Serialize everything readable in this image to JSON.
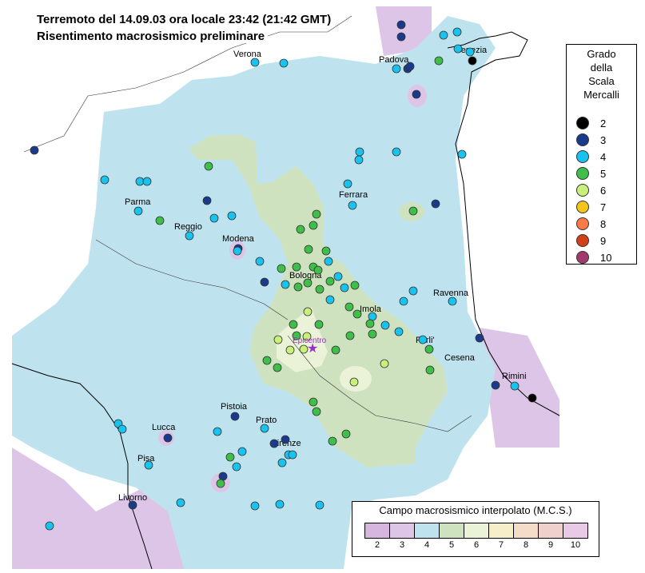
{
  "title_line1": "Terremoto del 14.09.03 ora locale 23:42 (21:42 GMT)",
  "title_line2": "Risentimento macrosismico preliminare",
  "legend": {
    "title": "Grado\ndella\nScala\nMercalli",
    "items": [
      {
        "grade": "2",
        "color": "#000000"
      },
      {
        "grade": "3",
        "color": "#1a3a8c"
      },
      {
        "grade": "4",
        "color": "#19c3ef"
      },
      {
        "grade": "5",
        "color": "#3fbf4a"
      },
      {
        "grade": "6",
        "color": "#c8f07a"
      },
      {
        "grade": "7",
        "color": "#f5c51c"
      },
      {
        "grade": "8",
        "color": "#ff7a45"
      },
      {
        "grade": "9",
        "color": "#d2401a"
      },
      {
        "grade": "10",
        "color": "#a33a6e"
      }
    ]
  },
  "field_legend": {
    "title": "Campo macrosismico interpolato (M.C.S.)",
    "swatches": [
      {
        "label": "2",
        "color": "#d6b6de"
      },
      {
        "label": "3",
        "color": "#ddc5e8"
      },
      {
        "label": "4",
        "color": "#bfe3ee"
      },
      {
        "label": "5",
        "color": "#cfe2c0"
      },
      {
        "label": "6",
        "color": "#eaf2d8"
      },
      {
        "label": "7",
        "color": "#f5eec9"
      },
      {
        "label": "8",
        "color": "#f5dcc8"
      },
      {
        "label": "9",
        "color": "#f0d0cc"
      },
      {
        "label": "10",
        "color": "#e8c9e6"
      }
    ]
  },
  "epicenter_label": "Epicentro",
  "cities": [
    "Verona",
    "Padova",
    "Venezia",
    "Parma",
    "Reggio",
    "Modena",
    "Ferrara",
    "Bologna",
    "Imola",
    "Ravenna",
    "Forli'",
    "Cesena",
    "Rimini",
    "Pistoia",
    "Prato",
    "Firenze",
    "Lucca",
    "Pisa",
    "Livorno"
  ],
  "colors": {
    "field_4": "#bfe3ee",
    "field_5": "#cfe2c0",
    "field_6": "#eaf2d8",
    "field_3": "#ddc5e8",
    "coast": "#000000",
    "epicenter": "#9b2fc9"
  }
}
